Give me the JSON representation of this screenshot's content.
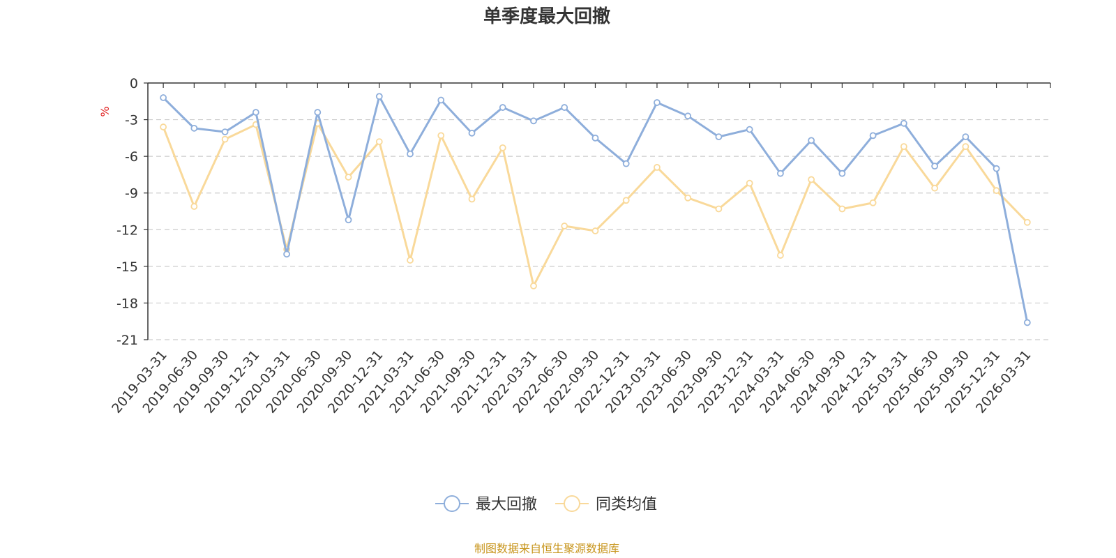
{
  "chart_data": {
    "type": "line",
    "title": "单季度最大回撤",
    "ylabel": "%",
    "xlabel": "",
    "ylim": [
      -21,
      0
    ],
    "yticks": [
      0,
      -3,
      -6,
      -9,
      -12,
      -15,
      -18,
      -21
    ],
    "grid": true,
    "legend_position": "bottom-center",
    "categories": [
      "2019-03-31",
      "2019-06-30",
      "2019-09-30",
      "2019-12-31",
      "2020-03-31",
      "2020-06-30",
      "2020-09-30",
      "2020-12-31",
      "2021-03-31",
      "2021-06-30",
      "2021-09-30",
      "2021-12-31",
      "2022-03-31",
      "2022-06-30",
      "2022-09-30",
      "2022-12-31",
      "2023-03-31",
      "2023-06-30",
      "2023-09-30",
      "2023-12-31",
      "2024-03-31",
      "2024-06-30",
      "2024-09-30",
      "2024-12-31",
      "2025-03-31",
      "2025-06-30",
      "2025-09-30",
      "2025-12-31",
      "2026-03-31"
    ],
    "series": [
      {
        "name": "最大回撤",
        "color": "#8eaedb",
        "values": [
          -1.2,
          -3.7,
          -4.0,
          -2.4,
          -14.0,
          -2.4,
          -11.2,
          -1.1,
          -5.8,
          -1.4,
          -4.1,
          -2.0,
          -3.1,
          -2.0,
          -4.5,
          -6.6,
          -1.6,
          -2.7,
          -4.4,
          -3.8,
          -7.4,
          -4.7,
          -7.4,
          -4.3,
          -3.3,
          -6.8,
          -4.4,
          -7.0,
          -19.6
        ]
      },
      {
        "name": "同类均值",
        "color": "#f9d99a",
        "values": [
          -3.6,
          -10.1,
          -4.6,
          -3.4,
          -13.6,
          -3.3,
          -7.7,
          -4.8,
          -14.5,
          -4.3,
          -9.5,
          -5.3,
          -16.6,
          -11.7,
          -12.1,
          -9.6,
          -6.9,
          -9.4,
          -10.3,
          -8.2,
          -14.1,
          -7.9,
          -10.3,
          -9.8,
          -5.2,
          -8.6,
          -5.2,
          -8.8,
          -11.4
        ]
      }
    ]
  },
  "source": "制图数据来自恒生聚源数据库"
}
